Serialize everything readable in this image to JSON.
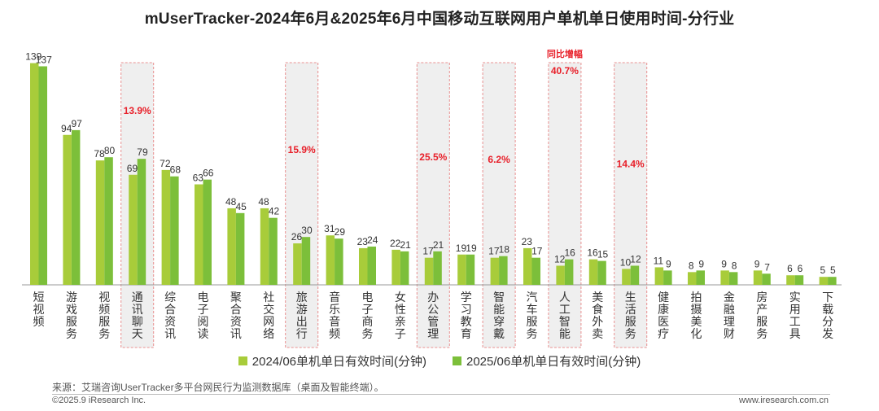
{
  "chart_data": {
    "type": "bar",
    "title": "mUserTracker-2024年6月&2025年6月中国移动互联网用户单机单日使用时间-分行业",
    "categories": [
      "短视频",
      "游戏服务",
      "视频服务",
      "通讯聊天",
      "综合资讯",
      "电子阅读",
      "聚合资讯",
      "社交网络",
      "旅游出行",
      "音乐音频",
      "电子商务",
      "女性亲子",
      "办公管理",
      "学习教育",
      "智能穿戴",
      "汽车服务",
      "人工智能",
      "美食外卖",
      "生活服务",
      "健康医疗",
      "拍摄美化",
      "金融理财",
      "房产服务",
      "实用工具",
      "下载分发"
    ],
    "series": [
      {
        "name": "2024/06单机单日有效时间(分钟)",
        "color": "#a8cc3a",
        "values": [
          139,
          94,
          78,
          69,
          72,
          63,
          48,
          48,
          26,
          31,
          23,
          22,
          17,
          19,
          17,
          23,
          12,
          16,
          10,
          11,
          8,
          9,
          9,
          6,
          5
        ]
      },
      {
        "name": "2025/06单机单日有效时间(分钟)",
        "color": "#7cbf3a",
        "values": [
          137,
          97,
          80,
          79,
          68,
          66,
          45,
          42,
          30,
          29,
          24,
          21,
          21,
          19,
          18,
          17,
          16,
          15,
          12,
          9,
          9,
          8,
          7,
          6,
          5
        ]
      }
    ],
    "highlights": [
      {
        "category": "通讯聊天",
        "label": "13.9%"
      },
      {
        "category": "旅游出行",
        "label": "15.9%"
      },
      {
        "category": "办公管理",
        "label": "25.5%"
      },
      {
        "category": "智能穿戴",
        "label": "6.2%"
      },
      {
        "category": "人工智能",
        "label": "40.7%"
      },
      {
        "category": "生活服务",
        "label": "14.4%"
      }
    ],
    "highlight_note": "同比增幅",
    "ylim": [
      0,
      150
    ],
    "grid": false,
    "legend": "bottom"
  },
  "footer": {
    "source": "来源：艾瑞咨询UserTracker多平台网民行为监测数据库（桌面及智能终端）。",
    "copyright": "©2025.9 iResearch Inc.",
    "website": "www.iresearch.com.cn"
  },
  "colors": {
    "highlight_text": "#e8202a",
    "highlight_border": "#e89090",
    "highlight_fill": "#efefef"
  }
}
